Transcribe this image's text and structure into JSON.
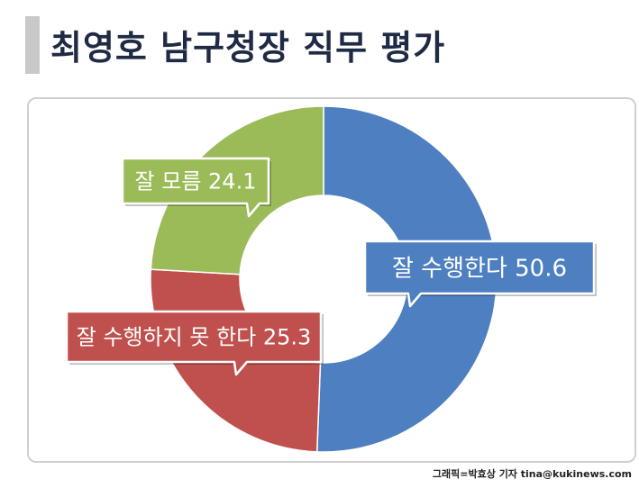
{
  "header": {
    "title": "최영호 남구청장 직무 평가"
  },
  "credit": {
    "text": "그래픽=박효상 기자 tina@kukinews.com"
  },
  "chart_data": {
    "type": "pie",
    "donut": true,
    "categories": [
      "잘 수행한다",
      "잘 수행하지 못 한다",
      "잘 모름"
    ],
    "values": [
      50.6,
      25.3,
      24.1
    ],
    "labels": [
      "잘 수행한다 50.6",
      "잘 수행하지 못 한다 25.3",
      "잘 모름 24.1"
    ],
    "colors": [
      "#4e7fc1",
      "#c0504d",
      "#9bbb59"
    ]
  }
}
